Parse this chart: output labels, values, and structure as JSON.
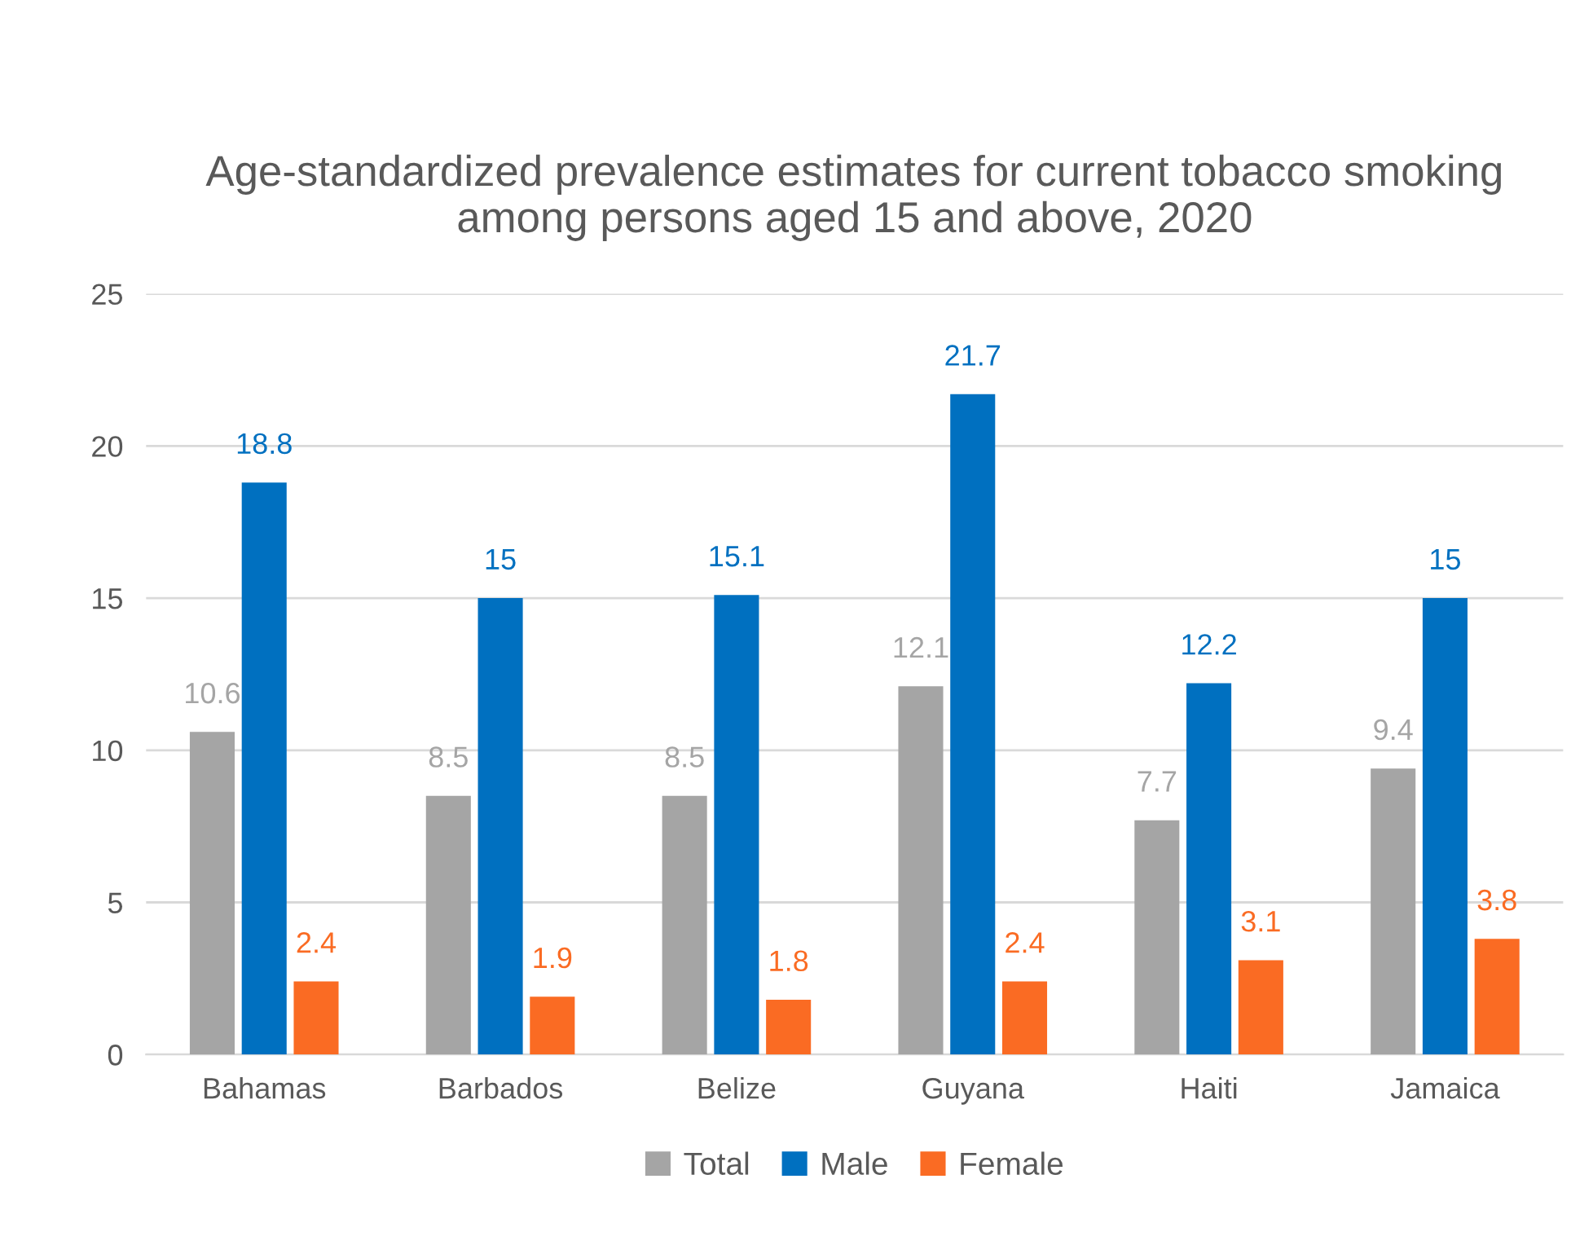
{
  "chart_data": {
    "type": "bar",
    "title": "Age-standardized prevalence estimates for current tobacco smoking among persons aged 15 and above, 2020",
    "categories": [
      "Bahamas",
      "Barbados",
      "Belize",
      "Guyana",
      "Haiti",
      "Jamaica"
    ],
    "series": [
      {
        "name": "Total",
        "color": "#a5a5a5",
        "values": [
          10.6,
          8.5,
          8.5,
          12.1,
          7.7,
          9.4
        ]
      },
      {
        "name": "Male",
        "color": "#0070c0",
        "values": [
          18.8,
          15,
          15.1,
          21.7,
          12.2,
          15
        ]
      },
      {
        "name": "Female",
        "color": "#fa6b23",
        "values": [
          2.4,
          1.9,
          1.8,
          2.4,
          3.1,
          3.8
        ]
      }
    ],
    "ylim": [
      0,
      25
    ],
    "yticks": [
      0,
      5,
      10,
      15,
      20,
      25
    ],
    "grid": "y",
    "legend": "bottom",
    "data_labels": true
  }
}
